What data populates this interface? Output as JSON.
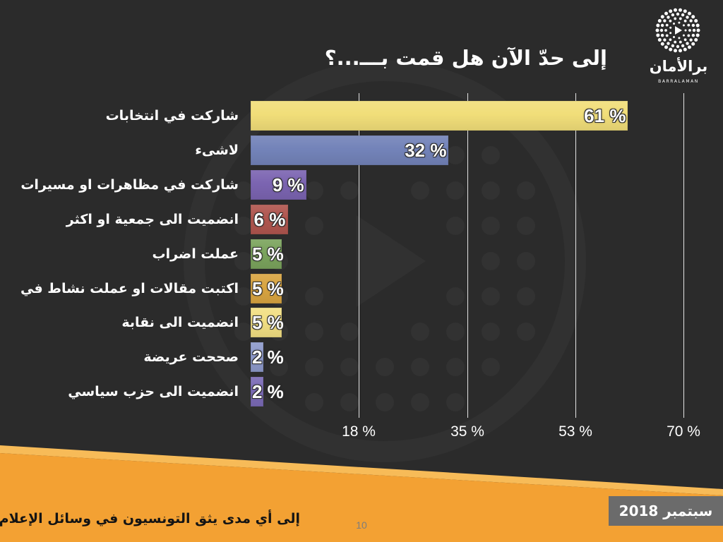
{
  "theme": {
    "background": "#2b2b2b",
    "accent": "#f3a133",
    "accent_light": "#f7bb58",
    "date_badge": "#6b6b6b"
  },
  "logo": {
    "icon": "play-dots-logo-icon",
    "name": "برالأمان",
    "subtitle": "BARRALAMAN"
  },
  "footer": {
    "survey_title": "إلى أي مدى يثق التونسيون في وسائل الإعلام ؟",
    "date": "سبتمبر 2018",
    "page_number": "10"
  },
  "chart_data": {
    "type": "bar",
    "orientation": "horizontal",
    "title": "إلى حدّ الآن هل قمت بـــ...؟",
    "categories": [
      "شاركت في انتخابات",
      "لاشىء",
      "شاركت في مظاهرات او مسيرات",
      "انضميت الى جمعية او اكثر",
      "عملت اضراب",
      "اكتبت مقالات او عملت نشاط في",
      "انضميت الى نقابة",
      "صححت عريضة",
      "انضميت الى حزب سياسي"
    ],
    "values": [
      61,
      32,
      9,
      6,
      5,
      5,
      5,
      2,
      2
    ],
    "value_labels": [
      "61 %",
      "32 %",
      "9 %",
      "6 %",
      "5 %",
      "5 %",
      "5 %",
      "2 %",
      "2 %"
    ],
    "bar_colors": [
      "#f1de79",
      "#7383b9",
      "#7b64b1",
      "#b0564f",
      "#7ba45d",
      "#d9a541",
      "#f2df83",
      "#8e9acb",
      "#7b6bb6"
    ],
    "xlim": [
      0,
      70
    ],
    "xtick_labels": [
      "18 %",
      "35 %",
      "53 %",
      "70 %"
    ],
    "grid": "vertical",
    "legend": "none"
  }
}
